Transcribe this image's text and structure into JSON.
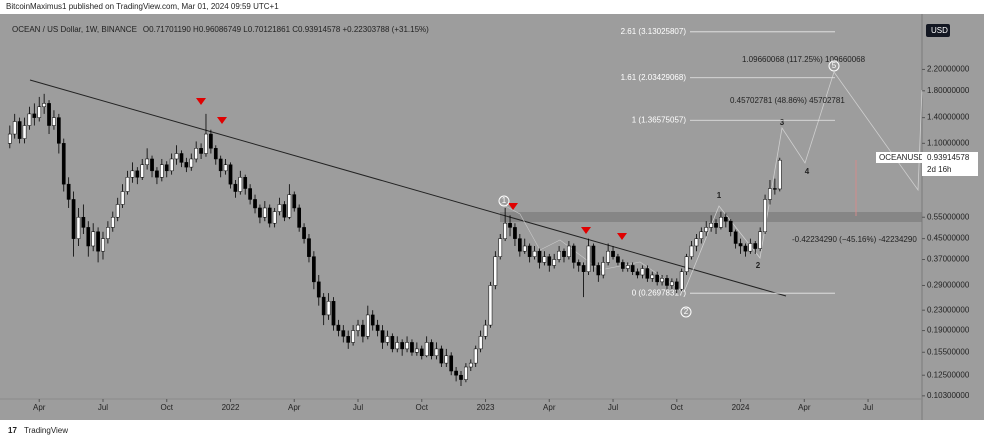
{
  "header": {
    "publisher": "BitcoinMaximus1 published on TradingView.com, Mar 01, 2024 09:59 UTC+1",
    "footer": "TradingView"
  },
  "chart_data": {
    "type": "candlestick",
    "title": "OCEAN / US Dollar, 1W, BINANCE",
    "ohlc_text": "O0.71701190  H0.96086749  L0.70121861  C0.93914578  +0.22303788 (+31.15%)",
    "currency": "USD",
    "symbol": "OCEANUSD",
    "last_price": "0.93914578",
    "countdown": "2d 16h",
    "log_scale": true,
    "grid": false,
    "up_color": "#ffffff",
    "down_color": "#000000",
    "ylim": [
      0.1,
      3.7
    ],
    "yticks": [
      {
        "value": 2.2,
        "label": "2.20000000"
      },
      {
        "value": 1.8,
        "label": "1.80000000"
      },
      {
        "value": 1.4,
        "label": "1.40000000"
      },
      {
        "value": 1.1,
        "label": "1.10000000"
      },
      {
        "value": 0.55,
        "label": "0.55000000"
      },
      {
        "value": 0.45,
        "label": "0.45000000"
      },
      {
        "value": 0.37,
        "label": "0.37000000"
      },
      {
        "value": 0.29,
        "label": "0.29000000"
      },
      {
        "value": 0.23,
        "label": "0.23000000"
      },
      {
        "value": 0.19,
        "label": "0.19000000"
      },
      {
        "value": 0.155,
        "label": "0.15500000"
      },
      {
        "value": 0.125,
        "label": "0.12500000"
      },
      {
        "value": 0.103,
        "label": "0.10300000"
      }
    ],
    "xticks": [
      {
        "value": 6,
        "label": "Apr"
      },
      {
        "value": 19,
        "label": "Jul"
      },
      {
        "value": 32,
        "label": "Oct"
      },
      {
        "value": 45,
        "label": "2022"
      },
      {
        "value": 58,
        "label": "Apr"
      },
      {
        "value": 71,
        "label": "Jul"
      },
      {
        "value": 84,
        "label": "Oct"
      },
      {
        "value": 97,
        "label": "2023"
      },
      {
        "value": 110,
        "label": "Apr"
      },
      {
        "value": 123,
        "label": "Jul"
      },
      {
        "value": 136,
        "label": "Oct"
      },
      {
        "value": 149,
        "label": "2024"
      },
      {
        "value": 162,
        "label": "Apr"
      },
      {
        "value": 175,
        "label": "Jul"
      }
    ],
    "xlim": [
      -2,
      186
    ],
    "candles": [
      [
        1.1,
        1.3,
        1.05,
        1.2
      ],
      [
        1.2,
        1.45,
        1.15,
        1.35
      ],
      [
        1.35,
        1.4,
        1.1,
        1.15
      ],
      [
        1.15,
        1.4,
        1.1,
        1.3
      ],
      [
        1.3,
        1.55,
        1.25,
        1.45
      ],
      [
        1.45,
        1.6,
        1.3,
        1.4
      ],
      [
        1.4,
        1.7,
        1.35,
        1.55
      ],
      [
        1.55,
        1.75,
        1.45,
        1.6
      ],
      [
        1.6,
        1.65,
        1.2,
        1.3
      ],
      [
        1.3,
        1.5,
        1.25,
        1.4
      ],
      [
        1.4,
        1.45,
        1.0,
        1.1
      ],
      [
        1.1,
        1.15,
        0.7,
        0.75
      ],
      [
        0.75,
        0.8,
        0.6,
        0.65
      ],
      [
        0.65,
        0.7,
        0.38,
        0.45
      ],
      [
        0.45,
        0.6,
        0.42,
        0.55
      ],
      [
        0.55,
        0.62,
        0.47,
        0.5
      ],
      [
        0.5,
        0.53,
        0.38,
        0.42
      ],
      [
        0.42,
        0.52,
        0.4,
        0.48
      ],
      [
        0.48,
        0.5,
        0.36,
        0.4
      ],
      [
        0.4,
        0.48,
        0.37,
        0.45
      ],
      [
        0.45,
        0.53,
        0.43,
        0.5
      ],
      [
        0.5,
        0.58,
        0.48,
        0.55
      ],
      [
        0.55,
        0.66,
        0.53,
        0.62
      ],
      [
        0.62,
        0.75,
        0.6,
        0.7
      ],
      [
        0.7,
        0.85,
        0.68,
        0.8
      ],
      [
        0.8,
        0.92,
        0.76,
        0.85
      ],
      [
        0.85,
        0.88,
        0.75,
        0.8
      ],
      [
        0.8,
        0.95,
        0.78,
        0.9
      ],
      [
        0.9,
        1.05,
        0.86,
        0.95
      ],
      [
        0.95,
        0.98,
        0.8,
        0.85
      ],
      [
        0.85,
        0.88,
        0.75,
        0.8
      ],
      [
        0.8,
        0.95,
        0.77,
        0.9
      ],
      [
        0.9,
        0.93,
        0.8,
        0.85
      ],
      [
        0.85,
        1.0,
        0.82,
        0.95
      ],
      [
        0.95,
        1.08,
        0.9,
        1.0
      ],
      [
        1.0,
        1.03,
        0.88,
        0.92
      ],
      [
        0.92,
        0.96,
        0.84,
        0.88
      ],
      [
        0.88,
        1.0,
        0.85,
        0.95
      ],
      [
        0.95,
        1.12,
        0.92,
        1.05
      ],
      [
        1.05,
        1.1,
        0.95,
        1.0
      ],
      [
        1.0,
        1.45,
        0.97,
        1.2
      ],
      [
        1.2,
        1.25,
        1.0,
        1.05
      ],
      [
        1.05,
        1.08,
        0.9,
        0.95
      ],
      [
        0.95,
        0.98,
        0.8,
        0.85
      ],
      [
        0.85,
        0.95,
        0.82,
        0.9
      ],
      [
        0.9,
        0.92,
        0.72,
        0.75
      ],
      [
        0.75,
        0.78,
        0.66,
        0.7
      ],
      [
        0.7,
        0.85,
        0.68,
        0.8
      ],
      [
        0.8,
        0.82,
        0.68,
        0.72
      ],
      [
        0.72,
        0.75,
        0.62,
        0.65
      ],
      [
        0.65,
        0.68,
        0.57,
        0.6
      ],
      [
        0.6,
        0.62,
        0.52,
        0.55
      ],
      [
        0.55,
        0.64,
        0.53,
        0.6
      ],
      [
        0.6,
        0.62,
        0.5,
        0.52
      ],
      [
        0.52,
        0.6,
        0.5,
        0.58
      ],
      [
        0.58,
        0.66,
        0.56,
        0.62
      ],
      [
        0.62,
        0.64,
        0.53,
        0.55
      ],
      [
        0.55,
        0.75,
        0.54,
        0.68
      ],
      [
        0.68,
        0.7,
        0.58,
        0.6
      ],
      [
        0.6,
        0.62,
        0.48,
        0.5
      ],
      [
        0.5,
        0.52,
        0.43,
        0.45
      ],
      [
        0.45,
        0.47,
        0.36,
        0.38
      ],
      [
        0.38,
        0.4,
        0.28,
        0.3
      ],
      [
        0.3,
        0.32,
        0.24,
        0.26
      ],
      [
        0.26,
        0.27,
        0.2,
        0.22
      ],
      [
        0.22,
        0.27,
        0.21,
        0.25
      ],
      [
        0.25,
        0.26,
        0.19,
        0.2
      ],
      [
        0.2,
        0.21,
        0.18,
        0.19
      ],
      [
        0.19,
        0.2,
        0.17,
        0.18
      ],
      [
        0.18,
        0.19,
        0.16,
        0.17
      ],
      [
        0.17,
        0.2,
        0.165,
        0.19
      ],
      [
        0.19,
        0.21,
        0.18,
        0.2
      ],
      [
        0.2,
        0.21,
        0.17,
        0.18
      ],
      [
        0.18,
        0.24,
        0.175,
        0.22
      ],
      [
        0.22,
        0.23,
        0.19,
        0.2
      ],
      [
        0.2,
        0.21,
        0.18,
        0.19
      ],
      [
        0.19,
        0.2,
        0.16,
        0.17
      ],
      [
        0.17,
        0.19,
        0.165,
        0.18
      ],
      [
        0.18,
        0.185,
        0.155,
        0.16
      ],
      [
        0.16,
        0.18,
        0.155,
        0.17
      ],
      [
        0.17,
        0.175,
        0.15,
        0.16
      ],
      [
        0.16,
        0.18,
        0.155,
        0.17
      ],
      [
        0.17,
        0.175,
        0.15,
        0.155
      ],
      [
        0.155,
        0.17,
        0.15,
        0.16
      ],
      [
        0.16,
        0.165,
        0.145,
        0.15
      ],
      [
        0.15,
        0.18,
        0.148,
        0.17
      ],
      [
        0.17,
        0.175,
        0.145,
        0.15
      ],
      [
        0.15,
        0.17,
        0.145,
        0.16
      ],
      [
        0.16,
        0.165,
        0.135,
        0.14
      ],
      [
        0.14,
        0.16,
        0.135,
        0.15
      ],
      [
        0.15,
        0.155,
        0.125,
        0.13
      ],
      [
        0.13,
        0.135,
        0.118,
        0.125
      ],
      [
        0.125,
        0.13,
        0.113,
        0.12
      ],
      [
        0.12,
        0.14,
        0.117,
        0.135
      ],
      [
        0.135,
        0.145,
        0.13,
        0.14
      ],
      [
        0.14,
        0.165,
        0.135,
        0.16
      ],
      [
        0.16,
        0.19,
        0.155,
        0.18
      ],
      [
        0.18,
        0.21,
        0.175,
        0.2
      ],
      [
        0.2,
        0.3,
        0.195,
        0.29
      ],
      [
        0.29,
        0.4,
        0.28,
        0.38
      ],
      [
        0.38,
        0.47,
        0.37,
        0.45
      ],
      [
        0.45,
        0.6,
        0.44,
        0.52
      ],
      [
        0.52,
        0.56,
        0.46,
        0.5
      ],
      [
        0.5,
        0.52,
        0.42,
        0.45
      ],
      [
        0.45,
        0.47,
        0.38,
        0.4
      ],
      [
        0.4,
        0.45,
        0.39,
        0.42
      ],
      [
        0.42,
        0.43,
        0.36,
        0.38
      ],
      [
        0.38,
        0.42,
        0.37,
        0.4
      ],
      [
        0.4,
        0.41,
        0.34,
        0.36
      ],
      [
        0.36,
        0.4,
        0.35,
        0.38
      ],
      [
        0.38,
        0.39,
        0.33,
        0.35
      ],
      [
        0.35,
        0.39,
        0.34,
        0.37
      ],
      [
        0.37,
        0.42,
        0.36,
        0.4
      ],
      [
        0.4,
        0.41,
        0.36,
        0.38
      ],
      [
        0.38,
        0.44,
        0.37,
        0.42
      ],
      [
        0.42,
        0.43,
        0.34,
        0.36
      ],
      [
        0.36,
        0.37,
        0.33,
        0.35
      ],
      [
        0.35,
        0.36,
        0.26,
        0.33
      ],
      [
        0.33,
        0.45,
        0.32,
        0.42
      ],
      [
        0.42,
        0.43,
        0.33,
        0.35
      ],
      [
        0.35,
        0.36,
        0.3,
        0.32
      ],
      [
        0.32,
        0.38,
        0.31,
        0.36
      ],
      [
        0.36,
        0.43,
        0.35,
        0.4
      ],
      [
        0.4,
        0.42,
        0.37,
        0.38
      ],
      [
        0.38,
        0.39,
        0.35,
        0.36
      ],
      [
        0.36,
        0.37,
        0.33,
        0.34
      ],
      [
        0.34,
        0.36,
        0.33,
        0.35
      ],
      [
        0.35,
        0.36,
        0.32,
        0.33
      ],
      [
        0.33,
        0.34,
        0.31,
        0.32
      ],
      [
        0.32,
        0.35,
        0.31,
        0.34
      ],
      [
        0.34,
        0.35,
        0.3,
        0.31
      ],
      [
        0.31,
        0.33,
        0.3,
        0.32
      ],
      [
        0.32,
        0.33,
        0.29,
        0.3
      ],
      [
        0.3,
        0.32,
        0.29,
        0.31
      ],
      [
        0.31,
        0.32,
        0.28,
        0.29
      ],
      [
        0.29,
        0.31,
        0.28,
        0.3
      ],
      [
        0.3,
        0.31,
        0.27,
        0.28
      ],
      [
        0.28,
        0.34,
        0.275,
        0.33
      ],
      [
        0.33,
        0.39,
        0.32,
        0.38
      ],
      [
        0.38,
        0.44,
        0.37,
        0.42
      ],
      [
        0.42,
        0.47,
        0.4,
        0.45
      ],
      [
        0.45,
        0.5,
        0.43,
        0.48
      ],
      [
        0.48,
        0.53,
        0.46,
        0.5
      ],
      [
        0.5,
        0.56,
        0.48,
        0.52
      ],
      [
        0.52,
        0.54,
        0.47,
        0.5
      ],
      [
        0.5,
        0.58,
        0.49,
        0.55
      ],
      [
        0.55,
        0.57,
        0.5,
        0.53
      ],
      [
        0.53,
        0.54,
        0.46,
        0.48
      ],
      [
        0.48,
        0.49,
        0.41,
        0.43
      ],
      [
        0.43,
        0.45,
        0.39,
        0.42
      ],
      [
        0.42,
        0.43,
        0.38,
        0.4
      ],
      [
        0.4,
        0.45,
        0.39,
        0.43
      ],
      [
        0.43,
        0.44,
        0.39,
        0.41
      ],
      [
        0.41,
        0.5,
        0.4,
        0.48
      ],
      [
        0.48,
        0.68,
        0.47,
        0.65
      ],
      [
        0.65,
        0.78,
        0.62,
        0.72
      ],
      [
        0.72,
        0.79,
        0.68,
        0.717
      ],
      [
        0.717,
        0.961,
        0.701,
        0.939
      ]
    ],
    "fib_levels": [
      {
        "value": 3.13025807,
        "label": "2.61 (3.13025807)"
      },
      {
        "value": 2.03429068,
        "label": "1.61 (2.03429068)"
      },
      {
        "value": 1.36575057,
        "label": "1 (1.36575057)"
      },
      {
        "value": 0.26978317,
        "label": "0 (0.26978317)"
      }
    ],
    "annotations": [
      "1.09660068 (117.25%) 109660068",
      "0.45702781 (48.86%) 45702781",
      "-0.42234290 (−45.16%) -42234290"
    ],
    "wave_labels": [
      "1",
      "2",
      "3",
      "4",
      "5"
    ],
    "circled_labels": [
      "1",
      "2"
    ]
  }
}
